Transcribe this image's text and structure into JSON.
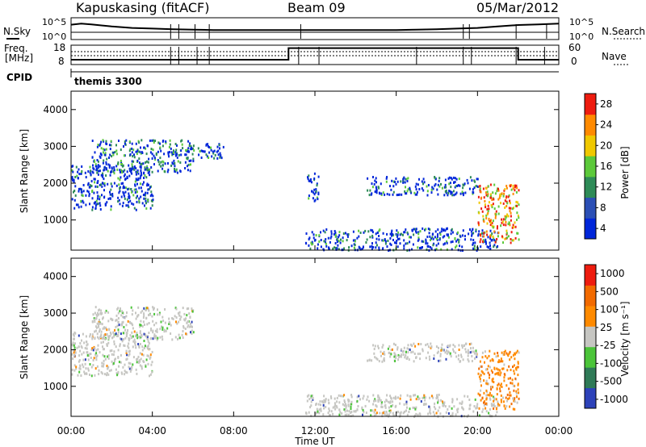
{
  "header": {
    "radar": "Kapuskasing (fitACF)",
    "beam": "Beam 09",
    "date": "05/Mar/2012"
  },
  "noise_panel": {
    "left_label": "N.Sky",
    "right_label": "N.Search",
    "left_ticks": [
      "10^5",
      "10^0"
    ],
    "right_ticks": [
      "10^5",
      "10^0"
    ]
  },
  "freq_panel": {
    "left_label_1": "Freq.",
    "left_label_2": "[MHz]",
    "right_label": "Nave",
    "left_ticks": [
      "18",
      "8"
    ],
    "right_ticks": [
      "60",
      "0"
    ]
  },
  "cpid": {
    "label": "CPID",
    "program": "themis 3300"
  },
  "power_panel": {
    "ylabel": "Slant Range [km]",
    "colorbar_label": "Power [dB]",
    "colorbar_ticks": [
      "28",
      "24",
      "20",
      "16",
      "12",
      "8",
      "4"
    ],
    "colors": [
      "#0026d9",
      "#2b4fb5",
      "#2e8b57",
      "#5cc93a",
      "#f0c800",
      "#ff8a00",
      "#ee1c0f"
    ]
  },
  "velocity_panel": {
    "ylabel": "Slant Range [km]",
    "colorbar_label": "Velocity [m s⁻¹]",
    "colorbar_ticks": [
      "1000",
      "500",
      "100",
      "25",
      "-25",
      "-100",
      "-500",
      "-1000"
    ],
    "colors": [
      "#2d42b9",
      "#2f7a57",
      "#4bc439",
      "#c6c6c2",
      "#ff8a00",
      "#f26a00",
      "#ee1c0f"
    ]
  },
  "x_axis": {
    "label": "Time UT",
    "ticks": [
      "00:00",
      "04:00",
      "08:00",
      "12:00",
      "16:00",
      "20:00",
      "00:00"
    ]
  },
  "chart_data": [
    {
      "type": "line",
      "title": "Kapuskasing (fitACF)  Beam 09  05/Mar/2012",
      "xlabel": "",
      "ylabel": "N.Sky",
      "xlim": [
        0,
        24
      ],
      "series": [
        {
          "name": "N.Sky",
          "x": [
            0,
            0.5,
            1,
            2,
            3,
            4,
            5,
            6,
            7,
            8,
            9,
            10,
            11,
            12,
            13,
            14,
            15,
            16,
            17,
            18,
            19,
            20,
            21,
            22,
            23,
            24
          ],
          "values": [
            3.5,
            3.8,
            3.6,
            3.0,
            2.6,
            2.4,
            2.2,
            2.1,
            2.0,
            2.0,
            2.0,
            2.0,
            2.0,
            2.0,
            2.0,
            2.0,
            2.0,
            2.0,
            2.1,
            2.2,
            2.4,
            2.6,
            3.0,
            3.4,
            3.6,
            3.8
          ]
        }
      ]
    },
    {
      "type": "line",
      "ylabel": "Freq. [MHz]",
      "xlim": [
        0,
        24
      ],
      "ylim": [
        8,
        18
      ],
      "series": [
        {
          "name": "Freq.",
          "x": [
            0,
            10.7,
            10.7,
            19.3,
            19.3,
            22.0,
            22.0,
            24
          ],
          "values": [
            10.5,
            10.5,
            16.5,
            16.5,
            16.5,
            16.5,
            10.5,
            10.5
          ]
        }
      ]
    },
    {
      "type": "heatmap",
      "ylabel": "Slant Range [km]",
      "xlim": [
        0,
        24
      ],
      "ylim": [
        180,
        4500
      ],
      "zlabel": "Power [dB]",
      "zlim": [
        0,
        32
      ],
      "regions": [
        {
          "x": [
            0.0,
            4.0
          ],
          "y": [
            1300,
            2500
          ],
          "z": 8
        },
        {
          "x": [
            1.0,
            6.0
          ],
          "y": [
            2300,
            3200
          ],
          "z": 10
        },
        {
          "x": [
            5.7,
            7.5
          ],
          "y": [
            2700,
            3100
          ],
          "z": 8
        },
        {
          "x": [
            11.6,
            12.2
          ],
          "y": [
            1500,
            2300
          ],
          "z": 6
        },
        {
          "x": [
            14.5,
            20.0
          ],
          "y": [
            1700,
            2200
          ],
          "z": 6
        },
        {
          "x": [
            11.5,
            21.0
          ],
          "y": [
            200,
            800
          ],
          "z": 8
        },
        {
          "x": [
            20.0,
            22.0
          ],
          "y": [
            400,
            2000
          ],
          "z": 20
        }
      ]
    },
    {
      "type": "heatmap",
      "ylabel": "Slant Range [km]",
      "xlim": [
        0,
        24
      ],
      "ylim": [
        180,
        4500
      ],
      "zlabel": "Velocity [m s⁻¹]",
      "zlim": [
        -1000,
        1000
      ],
      "regions": [
        {
          "x": [
            0.0,
            4.0
          ],
          "y": [
            1300,
            2500
          ],
          "z": 0
        },
        {
          "x": [
            1.0,
            6.0
          ],
          "y": [
            2300,
            3200
          ],
          "z": 0
        },
        {
          "x": [
            14.5,
            20.0
          ],
          "y": [
            1700,
            2200
          ],
          "z": 0
        },
        {
          "x": [
            11.5,
            21.0
          ],
          "y": [
            200,
            800
          ],
          "z": 0
        },
        {
          "x": [
            20.0,
            22.0
          ],
          "y": [
            400,
            2000
          ],
          "z": -300
        }
      ]
    }
  ]
}
